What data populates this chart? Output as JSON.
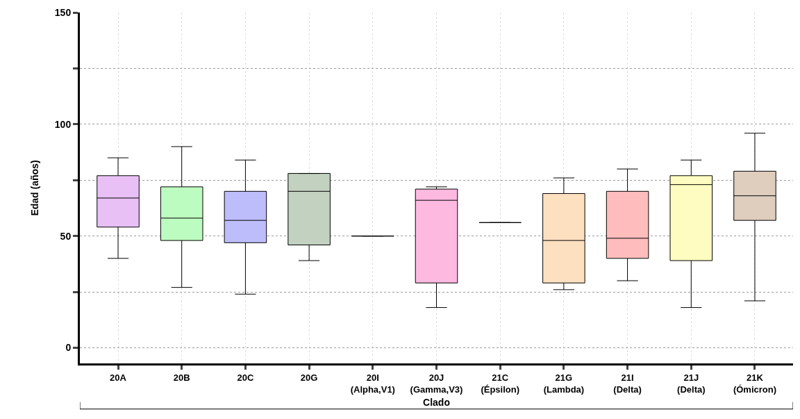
{
  "chart_data": {
    "type": "box",
    "categories": [
      "20A",
      "20B",
      "20C",
      "20G",
      "20I\n(Alpha,V1)",
      "20J\n(Gamma,V3)",
      "21C\n(Épsilon)",
      "21G\n(Lambda)",
      "21I\n(Delta)",
      "21J\n(Delta)",
      "21K\n(Ómicron)"
    ],
    "boxes": [
      {
        "low": 40,
        "q1": 54,
        "median": 67,
        "q3": 77,
        "high": 85
      },
      {
        "low": 27,
        "q1": 48,
        "median": 58,
        "q3": 72,
        "high": 90
      },
      {
        "low": 24,
        "q1": 47,
        "median": 57,
        "q3": 70,
        "high": 84
      },
      {
        "low": 39,
        "q1": 46,
        "median": 70,
        "q3": 78,
        "high": 78
      },
      {
        "low": 50,
        "q1": 50,
        "median": 50,
        "q3": 50,
        "high": 50
      },
      {
        "low": 18,
        "q1": 29,
        "median": 66,
        "q3": 71,
        "high": 72
      },
      {
        "low": 56,
        "q1": 56,
        "median": 56,
        "q3": 56,
        "high": 56
      },
      {
        "low": 26,
        "q1": 29,
        "median": 48,
        "q3": 69,
        "high": 76
      },
      {
        "low": 30,
        "q1": 40,
        "median": 49,
        "q3": 70,
        "high": 80
      },
      {
        "low": 18,
        "q1": 39,
        "median": 73,
        "q3": 77,
        "high": 84
      },
      {
        "low": 21,
        "q1": 57,
        "median": 68,
        "q3": 79,
        "high": 96
      }
    ],
    "colors": [
      "#e8c0f5",
      "#bdfcc0",
      "#bdbdfc",
      "#c2d1c0",
      "#000000",
      "#feb9e0",
      "#000000",
      "#fde0c0",
      "#febcbc",
      "#fefcc0",
      "#dfcdbd"
    ],
    "xlabel": "Clado",
    "ylabel": "Edad (años)",
    "ylim": [
      -7,
      150
    ],
    "yticks": [
      0,
      {
        "value": 25,
        "label": null
      },
      50,
      {
        "value": 75,
        "label": null
      },
      100,
      {
        "value": 125,
        "label": null
      },
      150
    ],
    "grid": true,
    "legend": false
  }
}
